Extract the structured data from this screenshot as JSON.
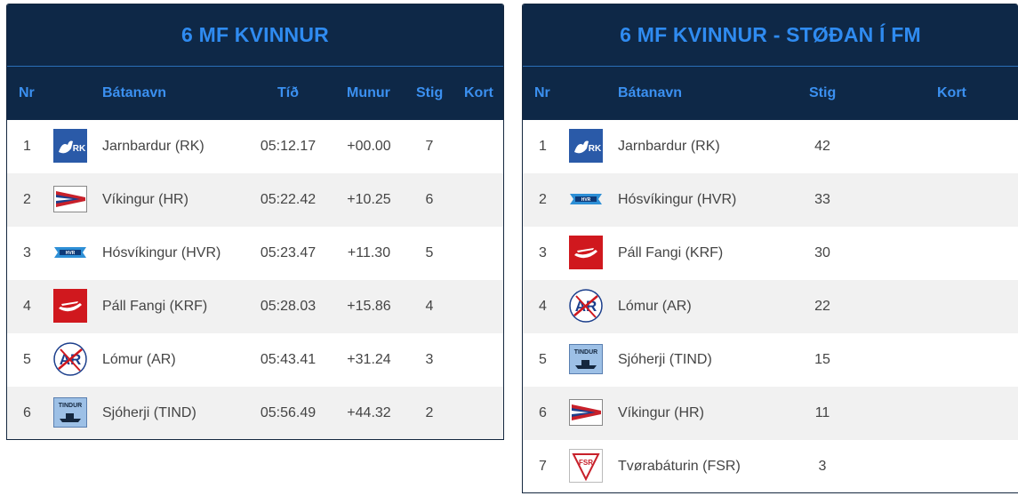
{
  "left": {
    "title": "6 MF KVINNUR",
    "headers": {
      "nr": "Nr",
      "boat": "Bátanavn",
      "time": "Tíð",
      "diff": "Munur",
      "points": "Stig",
      "card": "Kort"
    },
    "rows": [
      {
        "nr": "1",
        "logo": "rk-logo-icon",
        "name": "Jarnbardur (RK)",
        "time": "05:12.17",
        "diff": "+00.00",
        "points": "7",
        "card": ""
      },
      {
        "nr": "2",
        "logo": "hr-logo-icon",
        "name": "Víkingur (HR)",
        "time": "05:22.42",
        "diff": "+10.25",
        "points": "6",
        "card": ""
      },
      {
        "nr": "3",
        "logo": "hvr-logo-icon",
        "name": "Hósvíkingur (HVR)",
        "time": "05:23.47",
        "diff": "+11.30",
        "points": "5",
        "card": ""
      },
      {
        "nr": "4",
        "logo": "krf-logo-icon",
        "name": "Páll Fangi (KRF)",
        "time": "05:28.03",
        "diff": "+15.86",
        "points": "4",
        "card": ""
      },
      {
        "nr": "5",
        "logo": "ar-logo-icon",
        "name": "Lómur (AR)",
        "time": "05:43.41",
        "diff": "+31.24",
        "points": "3",
        "card": ""
      },
      {
        "nr": "6",
        "logo": "tind-logo-icon",
        "name": "Sjóherji (TIND)",
        "time": "05:56.49",
        "diff": "+44.32",
        "points": "2",
        "card": ""
      }
    ]
  },
  "right": {
    "title": "6 MF KVINNUR - STØÐAN Í FM",
    "headers": {
      "nr": "Nr",
      "boat": "Bátanavn",
      "points": "Stig",
      "card": "Kort"
    },
    "rows": [
      {
        "nr": "1",
        "logo": "rk-logo-icon",
        "name": "Jarnbardur (RK)",
        "points": "42",
        "card": ""
      },
      {
        "nr": "2",
        "logo": "hvr-logo-icon",
        "name": "Hósvíkingur (HVR)",
        "points": "33",
        "card": ""
      },
      {
        "nr": "3",
        "logo": "krf-logo-icon",
        "name": "Páll Fangi (KRF)",
        "points": "30",
        "card": ""
      },
      {
        "nr": "4",
        "logo": "ar-logo-icon",
        "name": "Lómur (AR)",
        "points": "22",
        "card": ""
      },
      {
        "nr": "5",
        "logo": "tind-logo-icon",
        "name": "Sjóherji (TIND)",
        "points": "15",
        "card": ""
      },
      {
        "nr": "6",
        "logo": "hr-logo-icon",
        "name": "Víkingur (HR)",
        "points": "11",
        "card": ""
      },
      {
        "nr": "7",
        "logo": "fsr-logo-icon",
        "name": "Tvørabáturin (FSR)",
        "points": "3",
        "card": ""
      }
    ]
  },
  "logos": {
    "rk-logo-icon": {
      "text": "RK"
    },
    "hvr-logo-icon": {
      "text": "HVR"
    },
    "ar-logo-icon": {
      "text": "AR"
    },
    "tind-logo-icon": {
      "text": "TINDUR"
    },
    "fsr-logo-icon": {
      "text": "FSR"
    }
  },
  "colors": {
    "header_bg": "#0e2847",
    "title_text": "#2f8bf0",
    "header_text": "#3b90f0",
    "row_alt": "#f1f1f1"
  }
}
